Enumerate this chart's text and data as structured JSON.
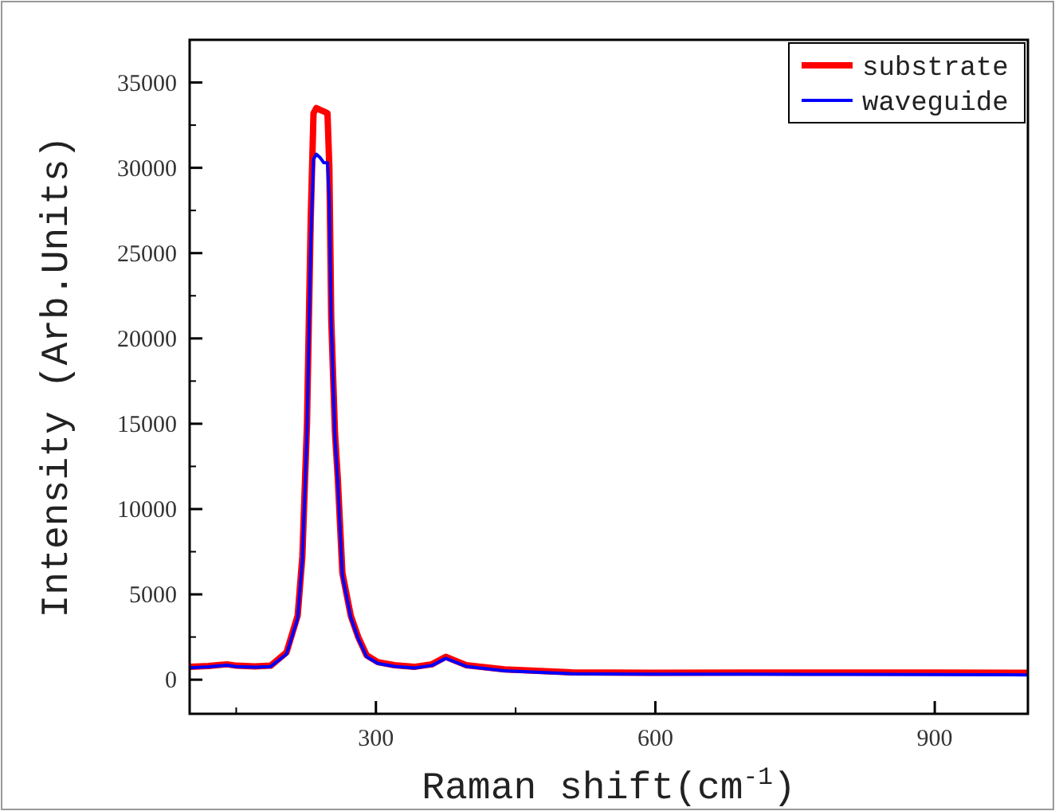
{
  "chart_data": {
    "type": "line",
    "xlabel": "Raman shift(cm$^{-1}$)",
    "ylabel": "Intensity (Arb.Units)",
    "x": [
      100,
      120,
      140,
      150,
      170,
      187,
      204,
      216,
      221,
      226,
      230,
      233,
      236,
      240,
      244,
      248,
      250,
      252,
      256,
      259,
      264,
      273,
      281,
      290,
      302,
      320,
      341,
      360,
      375,
      397,
      438,
      511,
      597,
      700,
      800,
      900,
      1000
    ],
    "xlim": [
      100,
      1000
    ],
    "xticks": [
      300,
      600,
      900
    ],
    "ylim": [
      -2000,
      37500
    ],
    "yticks": [
      0,
      5000,
      10000,
      15000,
      20000,
      25000,
      30000,
      35000
    ],
    "legend": "top right",
    "grid": false,
    "series": [
      {
        "name": "substrate",
        "color": "#ff0000",
        "values": [
          750,
          800,
          900,
          820,
          780,
          820,
          1600,
          3760,
          7200,
          15000,
          27000,
          33200,
          33500,
          33400,
          33300,
          33200,
          30000,
          21200,
          14500,
          11850,
          6250,
          3750,
          2500,
          1430,
          1030,
          850,
          750,
          900,
          1340,
          850,
          600,
          430,
          400,
          420,
          420,
          420,
          400
        ]
      },
      {
        "name": "waveguide",
        "color": "#0000ff",
        "values": [
          700,
          750,
          850,
          770,
          730,
          770,
          1500,
          3600,
          7000,
          14500,
          25500,
          30500,
          30800,
          30600,
          30300,
          30300,
          28000,
          21000,
          14200,
          11600,
          6100,
          3650,
          2400,
          1350,
          950,
          780,
          680,
          830,
          1250,
          780,
          520,
          350,
          320,
          320,
          310,
          300,
          280
        ]
      }
    ]
  }
}
